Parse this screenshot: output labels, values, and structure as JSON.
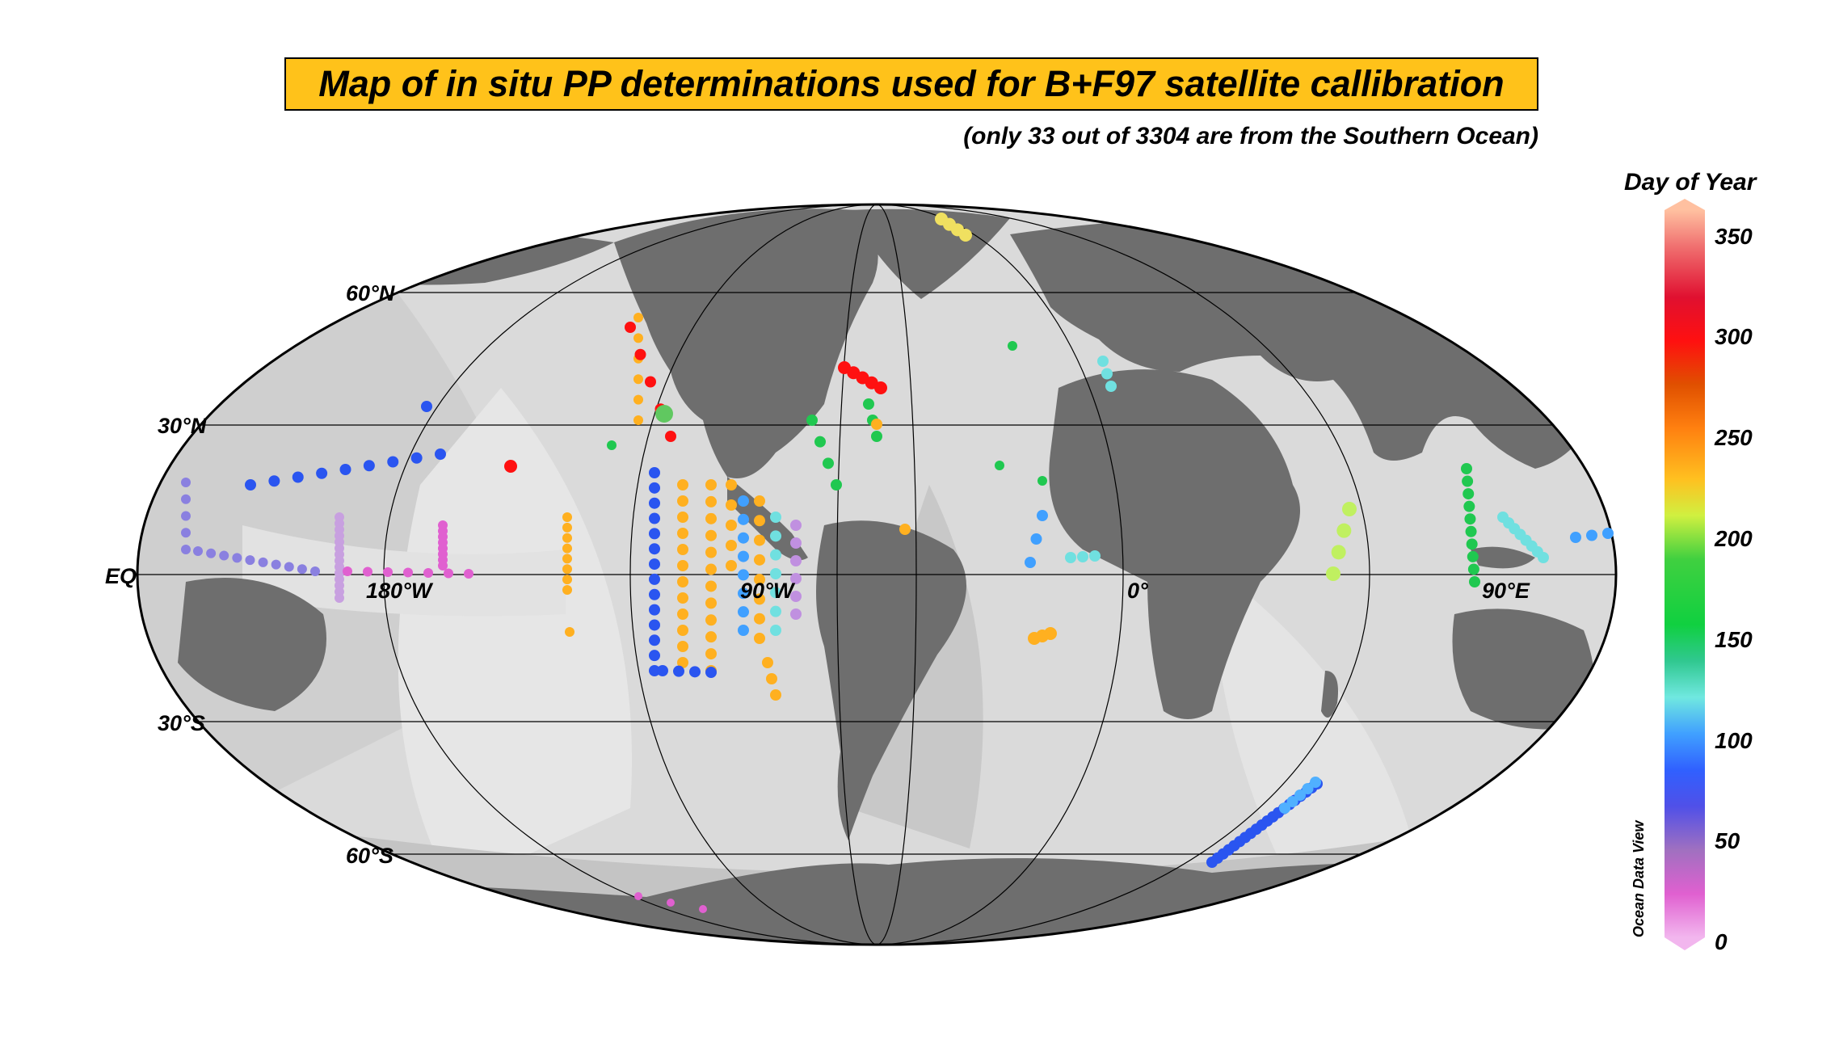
{
  "title": "Map of in situ PP determinations used for B+F97 satellite callibration",
  "subtitle": "(only 33 out of 3304 are from the Southern Ocean)",
  "latitude_labels": [
    "60°N",
    "30°N",
    "EQ",
    "30°S",
    "60°S"
  ],
  "longitude_labels": [
    "180°W",
    "90°W",
    "0°",
    "90°E"
  ],
  "colorbar": {
    "title": "Day of Year",
    "ticks": [
      "350",
      "300",
      "250",
      "200",
      "150",
      "100",
      "50",
      "0"
    ],
    "range": [
      0,
      365
    ],
    "watermark": "Ocean Data View"
  },
  "colors": {
    "ocean_light": "#d8d8d8",
    "land": "#6e6e6e",
    "title_bg": "#ffc21a"
  }
}
